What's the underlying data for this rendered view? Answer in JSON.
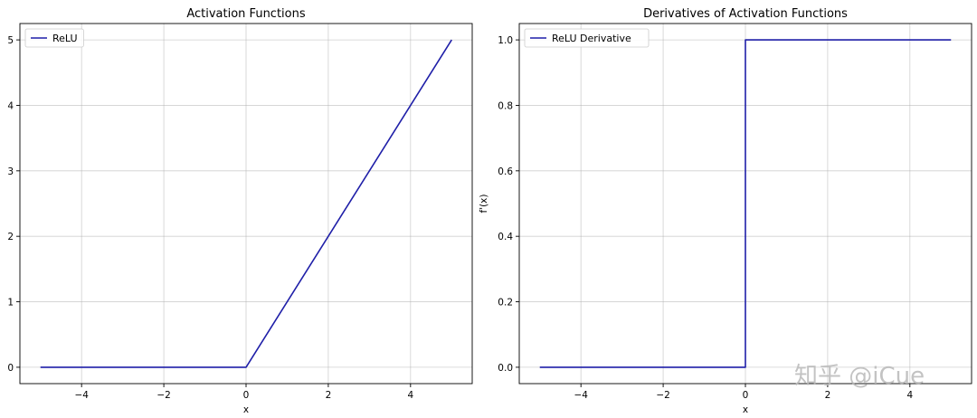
{
  "chart_data": [
    {
      "type": "line",
      "title": "Activation Functions",
      "xlabel": "x",
      "ylabel": "",
      "xlim": [
        -5.5,
        5.5
      ],
      "ylim": [
        -0.25,
        5.25
      ],
      "xticks": [
        -4,
        -2,
        0,
        2,
        4
      ],
      "xtick_labels": [
        "−4",
        "−2",
        "0",
        "2",
        "4"
      ],
      "yticks": [
        0,
        1,
        2,
        3,
        4,
        5
      ],
      "ytick_labels": [
        "0",
        "1",
        "2",
        "3",
        "4",
        "5"
      ],
      "grid": true,
      "legend_loc": "upper left",
      "series": [
        {
          "name": "ReLU",
          "color": "#1f1fa8",
          "x": [
            -5,
            0,
            5
          ],
          "y": [
            0,
            0,
            5
          ]
        }
      ]
    },
    {
      "type": "line",
      "title": "Derivatives of Activation Functions",
      "xlabel": "x",
      "ylabel": "f'(x)",
      "xlim": [
        -5.5,
        5.5
      ],
      "ylim": [
        -0.05,
        1.05
      ],
      "xticks": [
        -4,
        -2,
        0,
        2,
        4
      ],
      "xtick_labels": [
        "−4",
        "−2",
        "0",
        "2",
        "4"
      ],
      "yticks": [
        0,
        0.2,
        0.4,
        0.6,
        0.8,
        1.0
      ],
      "ytick_labels": [
        "0.0",
        "0.2",
        "0.4",
        "0.6",
        "0.8",
        "1.0"
      ],
      "grid": true,
      "legend_loc": "upper left",
      "series": [
        {
          "name": "ReLU Derivative",
          "color": "#1f1fa8",
          "x": [
            -5,
            0,
            0,
            5
          ],
          "y": [
            0,
            0,
            1,
            1
          ]
        }
      ]
    }
  ],
  "watermark": {
    "text": "知乎 @iCue"
  }
}
